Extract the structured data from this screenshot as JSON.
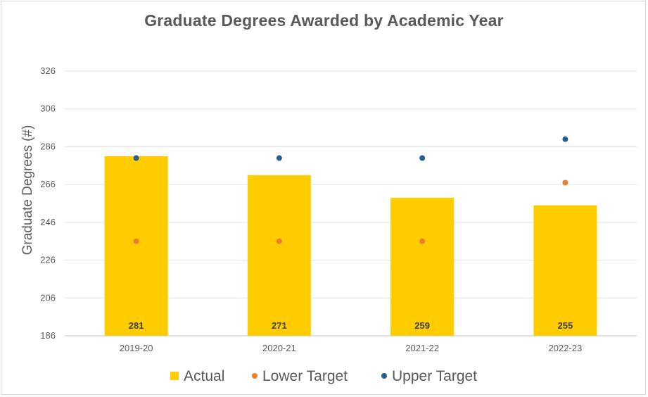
{
  "chart_data": {
    "type": "bar",
    "title": "Graduate Degrees Awarded by Academic Year",
    "ylabel": "Graduate Degrees (#)",
    "xlabel": "",
    "categories": [
      "2019-20",
      "2020-21",
      "2021-22",
      "2022-23"
    ],
    "ylim": [
      186,
      326
    ],
    "yticks": [
      186,
      206,
      226,
      246,
      266,
      286,
      306,
      326
    ],
    "grid": true,
    "legend_position": "bottom",
    "series": [
      {
        "name": "Actual",
        "kind": "bar",
        "color": "#FFCC00",
        "values": [
          281,
          271,
          259,
          255
        ]
      },
      {
        "name": "Lower Target",
        "kind": "point",
        "color": "#ED7D31",
        "values": [
          236,
          236,
          236,
          267
        ]
      },
      {
        "name": "Upper Target",
        "kind": "point",
        "color": "#255E91",
        "values": [
          280,
          280,
          280,
          290
        ]
      }
    ]
  }
}
